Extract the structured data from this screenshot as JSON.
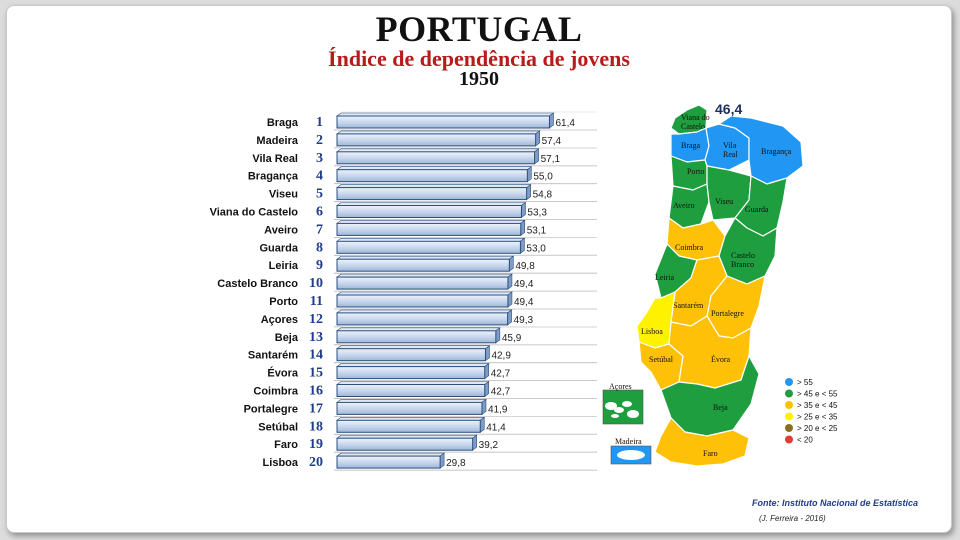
{
  "header": {
    "title": "PORTUGAL",
    "subtitle": "Índice de dependência de jovens",
    "year": "1950"
  },
  "colors": {
    "bar_fill": "#c5d5ec",
    "bar_stroke": "#2c4f7c",
    "rank_color": "#1f3c88",
    "subtitle_color": "#b71c1c",
    "map_blue": "#2196f3",
    "map_green": "#1e9e3e",
    "map_orange": "#ffc107",
    "map_yellow": "#fff200"
  },
  "chart_data": {
    "type": "bar",
    "orientation": "horizontal",
    "categories": [
      "Braga",
      "Madeira",
      "Vila Real",
      "Bragança",
      "Viseu",
      "Viana do Castelo",
      "Aveiro",
      "Guarda",
      "Leiria",
      "Castelo Branco",
      "Porto",
      "Açores",
      "Beja",
      "Santarém",
      "Évora",
      "Coimbra",
      "Portalegre",
      "Setúbal",
      "Faro",
      "Lisboa"
    ],
    "ranks": [
      "1",
      "2",
      "3",
      "4",
      "5",
      "6",
      "7",
      "8",
      "9",
      "10",
      "11",
      "12",
      "13",
      "14",
      "15",
      "16",
      "17",
      "18",
      "19",
      "20"
    ],
    "values": [
      61.4,
      57.4,
      57.1,
      55.0,
      54.8,
      53.3,
      53.1,
      53.0,
      49.8,
      49.4,
      49.4,
      49.3,
      45.9,
      42.9,
      42.7,
      42.7,
      41.9,
      41.4,
      39.2,
      29.8
    ],
    "value_labels": [
      "61,4",
      "57,4",
      "57,1",
      "55,0",
      "54,8",
      "53,3",
      "53,1",
      "53,0",
      "49,8",
      "49,4",
      "49,4",
      "49,3",
      "45,9",
      "42,9",
      "42,7",
      "42,7",
      "41,9",
      "41,4",
      "39,2",
      "29,8"
    ],
    "xlim": [
      0,
      63
    ],
    "grid": true
  },
  "map": {
    "national_value": "46,4",
    "regions": [
      {
        "label": "Viana do\nCastelo",
        "class": "> 45 e < 55"
      },
      {
        "label": "Braga",
        "class": "> 55"
      },
      {
        "label": "Vila\nReal",
        "class": "> 55"
      },
      {
        "label": "Bragança",
        "class": "> 55"
      },
      {
        "label": "Porto",
        "class": "> 45 e < 55"
      },
      {
        "label": "Aveiro",
        "class": "> 45 e < 55"
      },
      {
        "label": "Viseu",
        "class": "> 45 e < 55"
      },
      {
        "label": "Guarda",
        "class": "> 45 e < 55"
      },
      {
        "label": "Coimbra",
        "class": "> 35 e < 45"
      },
      {
        "label": "Castelo\nBranco",
        "class": "> 45 e < 55"
      },
      {
        "label": "Leiria",
        "class": "> 45 e < 55"
      },
      {
        "label": "Santarém",
        "class": "> 35 e < 45"
      },
      {
        "label": "Portalegre",
        "class": "> 35 e < 45"
      },
      {
        "label": "Lisboa",
        "class": "> 25 e < 35"
      },
      {
        "label": "Setúbal",
        "class": "> 35 e < 45"
      },
      {
        "label": "Évora",
        "class": "> 35 e < 45"
      },
      {
        "label": "Beja",
        "class": "> 45 e < 55"
      },
      {
        "label": "Faro",
        "class": "> 35 e < 45"
      }
    ],
    "islands": [
      {
        "label": "Açores",
        "class": "> 45 e < 55"
      },
      {
        "label": "Madeira",
        "class": "> 55"
      }
    ],
    "legend": [
      {
        "label": "> 55",
        "color": "#2196f3"
      },
      {
        "label": "> 45 e < 55",
        "color": "#1e9e3e"
      },
      {
        "label": "> 35 e < 45",
        "color": "#ffc107"
      },
      {
        "label": "> 25 e < 35",
        "color": "#fff200"
      },
      {
        "label": "> 20  e < 25",
        "color": "#8d6e1f"
      },
      {
        "label": "< 20",
        "color": "#e53935"
      }
    ]
  },
  "footer": {
    "source": "Fonte: Instituto Nacional de Estatística",
    "author": "(J. Ferreira - 2016)"
  }
}
